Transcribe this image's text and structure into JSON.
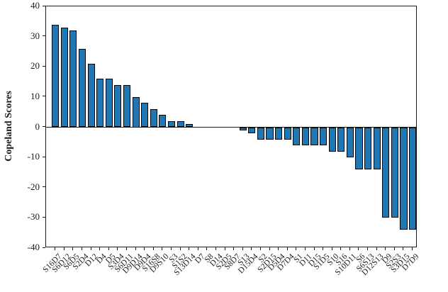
{
  "figure": {
    "background": "#ffffff"
  },
  "chart_data": {
    "type": "bar",
    "title": "",
    "xlabel": "",
    "ylabel": "Copeland Scores",
    "categories": [
      "S16D7",
      "S6D12",
      "S6D5",
      "S2D4",
      "D12",
      "D4",
      "D5",
      "S3D4",
      "S6D11",
      "D9D14",
      "D9D4",
      "S16S8",
      "D9S10",
      "S3",
      "S1S2",
      "S13D14",
      "D7",
      "S8",
      "D14",
      "S2D5",
      "S8D7",
      "S13",
      "D15D4",
      "S2",
      "S2D15",
      "D5D4",
      "D7D4",
      "S1",
      "D11",
      "D15",
      "S1D5",
      "S10",
      "S16",
      "S10D11",
      "S6",
      "S6S13",
      "D12S13",
      "D9",
      "S2S3",
      "S3D15",
      "D7D9"
    ],
    "values": [
      34,
      33,
      32,
      26,
      21,
      16,
      16,
      14,
      14,
      10,
      8,
      6,
      4,
      2,
      2,
      1,
      0,
      0,
      0,
      0,
      0,
      -1,
      -2,
      -4,
      -4,
      -4,
      -4,
      -6,
      -6,
      -6,
      -6,
      -8,
      -8,
      -10,
      -14,
      -14,
      -14,
      -30,
      -30,
      -34,
      -34
    ],
    "ylim": [
      -40,
      40
    ],
    "yticks": [
      40,
      30,
      20,
      10,
      0,
      -10,
      -20,
      -30,
      -40
    ],
    "grid": false,
    "legend": null,
    "bar_color": "#1f77b4",
    "bar_edge_color": "#000000",
    "axis_color": "#1a1a1a"
  }
}
